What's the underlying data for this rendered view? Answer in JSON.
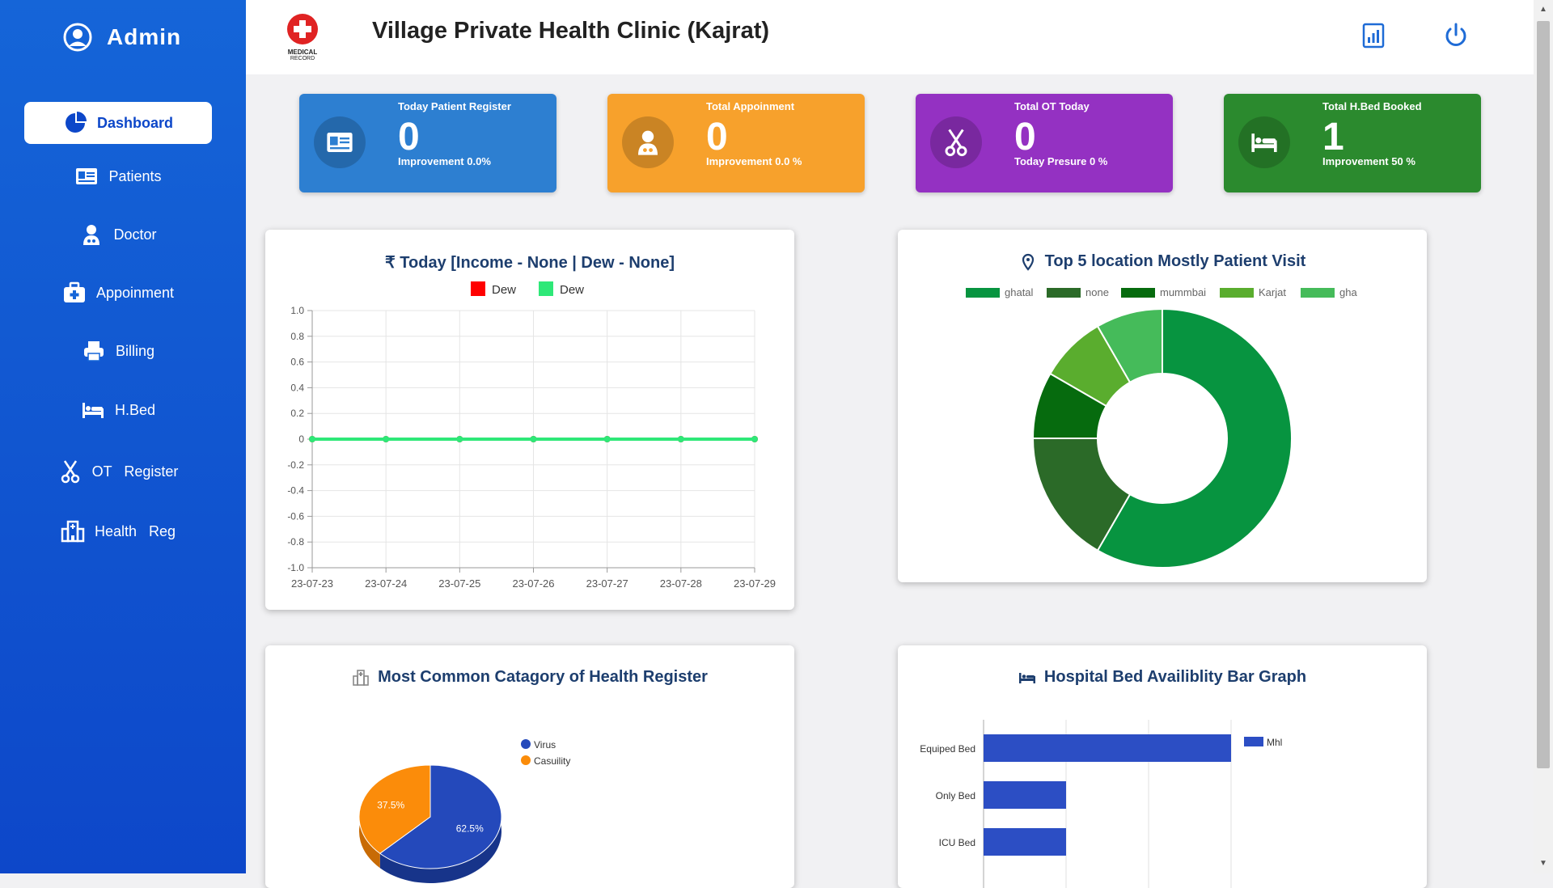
{
  "sidebar": {
    "brand": "Admin",
    "items": [
      {
        "label": "Dashboard",
        "icon": "pie-chart-icon",
        "active": true
      },
      {
        "label": "Patients",
        "icon": "id-card-icon"
      },
      {
        "label": "Doctor",
        "icon": "doctor-icon"
      },
      {
        "label": "Appoinment",
        "icon": "medical-kit-icon"
      },
      {
        "label": "Billing",
        "icon": "printer-icon"
      },
      {
        "label": "H.Bed",
        "icon": "bed-icon"
      },
      {
        "label": "OT   Register",
        "icon": "scissors-icon"
      },
      {
        "label": "Health   Reg",
        "icon": "hospital-icon"
      }
    ]
  },
  "header": {
    "logo_text": "MEDICAL",
    "logo_sub": "RECORD",
    "title": "Village Private Health Clinic (Kajrat)"
  },
  "stats": [
    {
      "label": "Today Patient Register",
      "value": "0",
      "sub": "Improvement 0.0%",
      "color": "#2d7fd1",
      "icon": "id-card-icon"
    },
    {
      "label": "Total Appoinment",
      "value": "0",
      "sub": "Improvement 0.0 %",
      "color": "#f7a12c",
      "icon": "doctor-icon"
    },
    {
      "label": "Total OT Today",
      "value": "0",
      "sub": "Today Presure 0 %",
      "color": "#9431c2",
      "icon": "scissors-icon"
    },
    {
      "label": "Total H.Bed Booked",
      "value": "1",
      "sub": "Improvement 50 %",
      "color": "#2b8a2e",
      "icon": "bed-icon"
    }
  ],
  "panels": {
    "income": {
      "title": "₹ Today [Income - None |  Dew - None]"
    },
    "locations": {
      "title": "Top 5 location Mostly Patient Visit"
    },
    "health": {
      "title": "Most Common Catagory of Health Register"
    },
    "beds": {
      "title": "Hospital Bed Availiblity Bar Graph"
    }
  },
  "chart_data": [
    {
      "type": "line",
      "title": "₹ Today [Income - None |  Dew - None]",
      "x": [
        "23-07-23",
        "23-07-24",
        "23-07-25",
        "23-07-26",
        "23-07-27",
        "23-07-28",
        "23-07-29"
      ],
      "series": [
        {
          "name": "Dew",
          "color": "#ff0000",
          "values": [
            0,
            0,
            0,
            0,
            0,
            0,
            0
          ]
        },
        {
          "name": "Dew",
          "color": "#2ee878",
          "values": [
            0,
            0,
            0,
            0,
            0,
            0,
            0
          ]
        }
      ],
      "ylim": [
        -1.0,
        1.0
      ],
      "yticks": [
        "1.0",
        "0.8",
        "0.6",
        "0.4",
        "0.2",
        "0",
        "-0.2",
        "-0.4",
        "-0.6",
        "-0.8",
        "-1.0"
      ],
      "grid": true,
      "legend": "top"
    },
    {
      "type": "pie",
      "donut": true,
      "title": "Top 5 location Mostly Patient Visit",
      "categories": [
        "ghatal",
        "none",
        "mummbai",
        "Karjat",
        "gha"
      ],
      "values": [
        7,
        2,
        1,
        1,
        1
      ],
      "colors": [
        "#079440",
        "#2b6a28",
        "#066b0e",
        "#5aad2e",
        "#45bb5a"
      ],
      "legend": "top"
    },
    {
      "type": "pie",
      "title": "Most Common Catagory of Health Register",
      "categories": [
        "Virus",
        "Casuility"
      ],
      "values": [
        62.5,
        37.5
      ],
      "labels": [
        "62.5%",
        "37.5%"
      ],
      "colors": [
        "#2449bb",
        "#fb8c0a"
      ],
      "legend": "right"
    },
    {
      "type": "bar",
      "orientation": "horizontal",
      "title": "Hospital Bed Availiblity Bar Graph",
      "categories": [
        "Equiped Bed",
        "Only Bed",
        "ICU Bed"
      ],
      "series": [
        {
          "name": "Mhl",
          "color": "#2c4ec4",
          "values": [
            3,
            1,
            1
          ]
        }
      ],
      "xlim": [
        0,
        3.5
      ],
      "grid": true,
      "legend": "top-right"
    }
  ]
}
